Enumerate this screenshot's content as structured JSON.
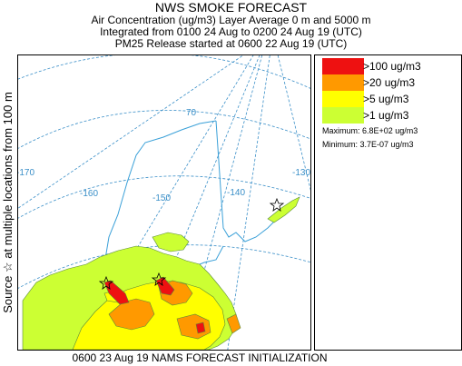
{
  "header": {
    "title": "NWS SMOKE FORECAST",
    "line2": "Air Concentration (ug/m3) Layer Average    0 m and  5000 m",
    "line3": "Integrated from 0100 24 Aug to 0200 24 Aug 19 (UTC)",
    "line4": "PM25 Release started at 0600 22 Aug 19 (UTC)"
  },
  "side_label": "Source ☆ at multiple locations   from   100 m",
  "map": {
    "lon_labels": [
      "-170",
      "-160",
      "-150",
      "-140",
      "-130"
    ],
    "lat_labels": [
      "70"
    ],
    "colors": {
      "graticule": "#3a8fc8",
      "coastline": "#3aa0d8",
      "land_outline": "#5a8a3a"
    }
  },
  "legend": {
    "items": [
      {
        "label": ">100 ug/m3",
        "color": "#ee1111"
      },
      {
        "label": ">20 ug/m3",
        "color": "#ff9900"
      },
      {
        "label": ">5 ug/m3",
        "color": "#ffff00"
      },
      {
        "label": ">1 ug/m3",
        "color": "#ccff33"
      }
    ],
    "maximum": "Maximum: 6.8E+02 ug/m3",
    "minimum": "Minimum: 3.7E-07 ug/m3"
  },
  "footer": "0600 23 Aug 19 NAMS FORECAST INITIALIZATION"
}
